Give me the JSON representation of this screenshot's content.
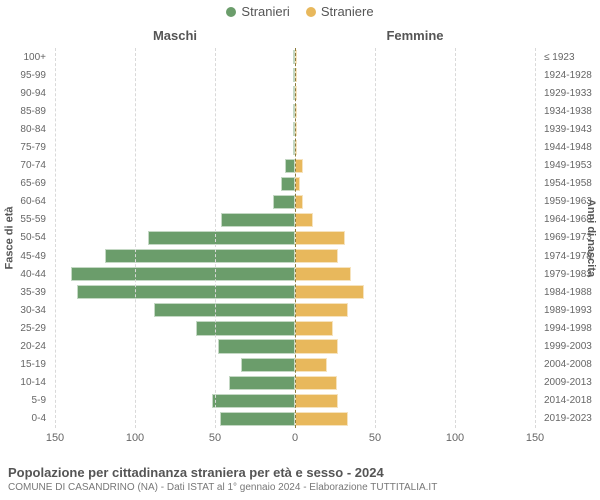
{
  "chart": {
    "type": "population-pyramid",
    "legend": {
      "male": {
        "label": "Stranieri",
        "color": "#6b9d6b"
      },
      "female": {
        "label": "Straniere",
        "color": "#e8b85c"
      }
    },
    "col_headers": {
      "left": "Maschi",
      "right": "Femmine"
    },
    "y_axis_left_title": "Fasce di età",
    "y_axis_right_title": "Anni di nascita",
    "xlim": 150,
    "x_ticks_left": [
      150,
      100,
      50,
      0
    ],
    "x_ticks_right": [
      50,
      100,
      150
    ],
    "grid_color": "#d9d9d9",
    "center_line_color": "#8a7a3a",
    "background_color": "#ffffff",
    "label_fontsize": 10,
    "header_fontsize": 13,
    "bar_height_ratio": 0.78,
    "rows": [
      {
        "age": "100+",
        "birth": "≤ 1923",
        "m": 0,
        "f": 0
      },
      {
        "age": "95-99",
        "birth": "1924-1928",
        "m": 0,
        "f": 0
      },
      {
        "age": "90-94",
        "birth": "1929-1933",
        "m": 0,
        "f": 0
      },
      {
        "age": "85-89",
        "birth": "1934-1938",
        "m": 0,
        "f": 0
      },
      {
        "age": "80-84",
        "birth": "1939-1943",
        "m": 0,
        "f": 0
      },
      {
        "age": "75-79",
        "birth": "1944-1948",
        "m": 0,
        "f": 0
      },
      {
        "age": "70-74",
        "birth": "1949-1953",
        "m": 6,
        "f": 5
      },
      {
        "age": "65-69",
        "birth": "1954-1958",
        "m": 9,
        "f": 3
      },
      {
        "age": "60-64",
        "birth": "1959-1963",
        "m": 14,
        "f": 5
      },
      {
        "age": "55-59",
        "birth": "1964-1968",
        "m": 46,
        "f": 11
      },
      {
        "age": "50-54",
        "birth": "1969-1973",
        "m": 92,
        "f": 31
      },
      {
        "age": "45-49",
        "birth": "1974-1978",
        "m": 119,
        "f": 27
      },
      {
        "age": "40-44",
        "birth": "1979-1983",
        "m": 140,
        "f": 35
      },
      {
        "age": "35-39",
        "birth": "1984-1988",
        "m": 136,
        "f": 43
      },
      {
        "age": "30-34",
        "birth": "1989-1993",
        "m": 88,
        "f": 33
      },
      {
        "age": "25-29",
        "birth": "1994-1998",
        "m": 62,
        "f": 24
      },
      {
        "age": "20-24",
        "birth": "1999-2003",
        "m": 48,
        "f": 27
      },
      {
        "age": "15-19",
        "birth": "2004-2008",
        "m": 34,
        "f": 20
      },
      {
        "age": "10-14",
        "birth": "2009-2013",
        "m": 41,
        "f": 26
      },
      {
        "age": "5-9",
        "birth": "2014-2018",
        "m": 52,
        "f": 27
      },
      {
        "age": "0-4",
        "birth": "2019-2023",
        "m": 47,
        "f": 33
      }
    ],
    "title": "Popolazione per cittadinanza straniera per età e sesso - 2024",
    "subtitle": "COMUNE DI CASANDRINO (NA) - Dati ISTAT al 1° gennaio 2024 - Elaborazione TUTTITALIA.IT"
  }
}
